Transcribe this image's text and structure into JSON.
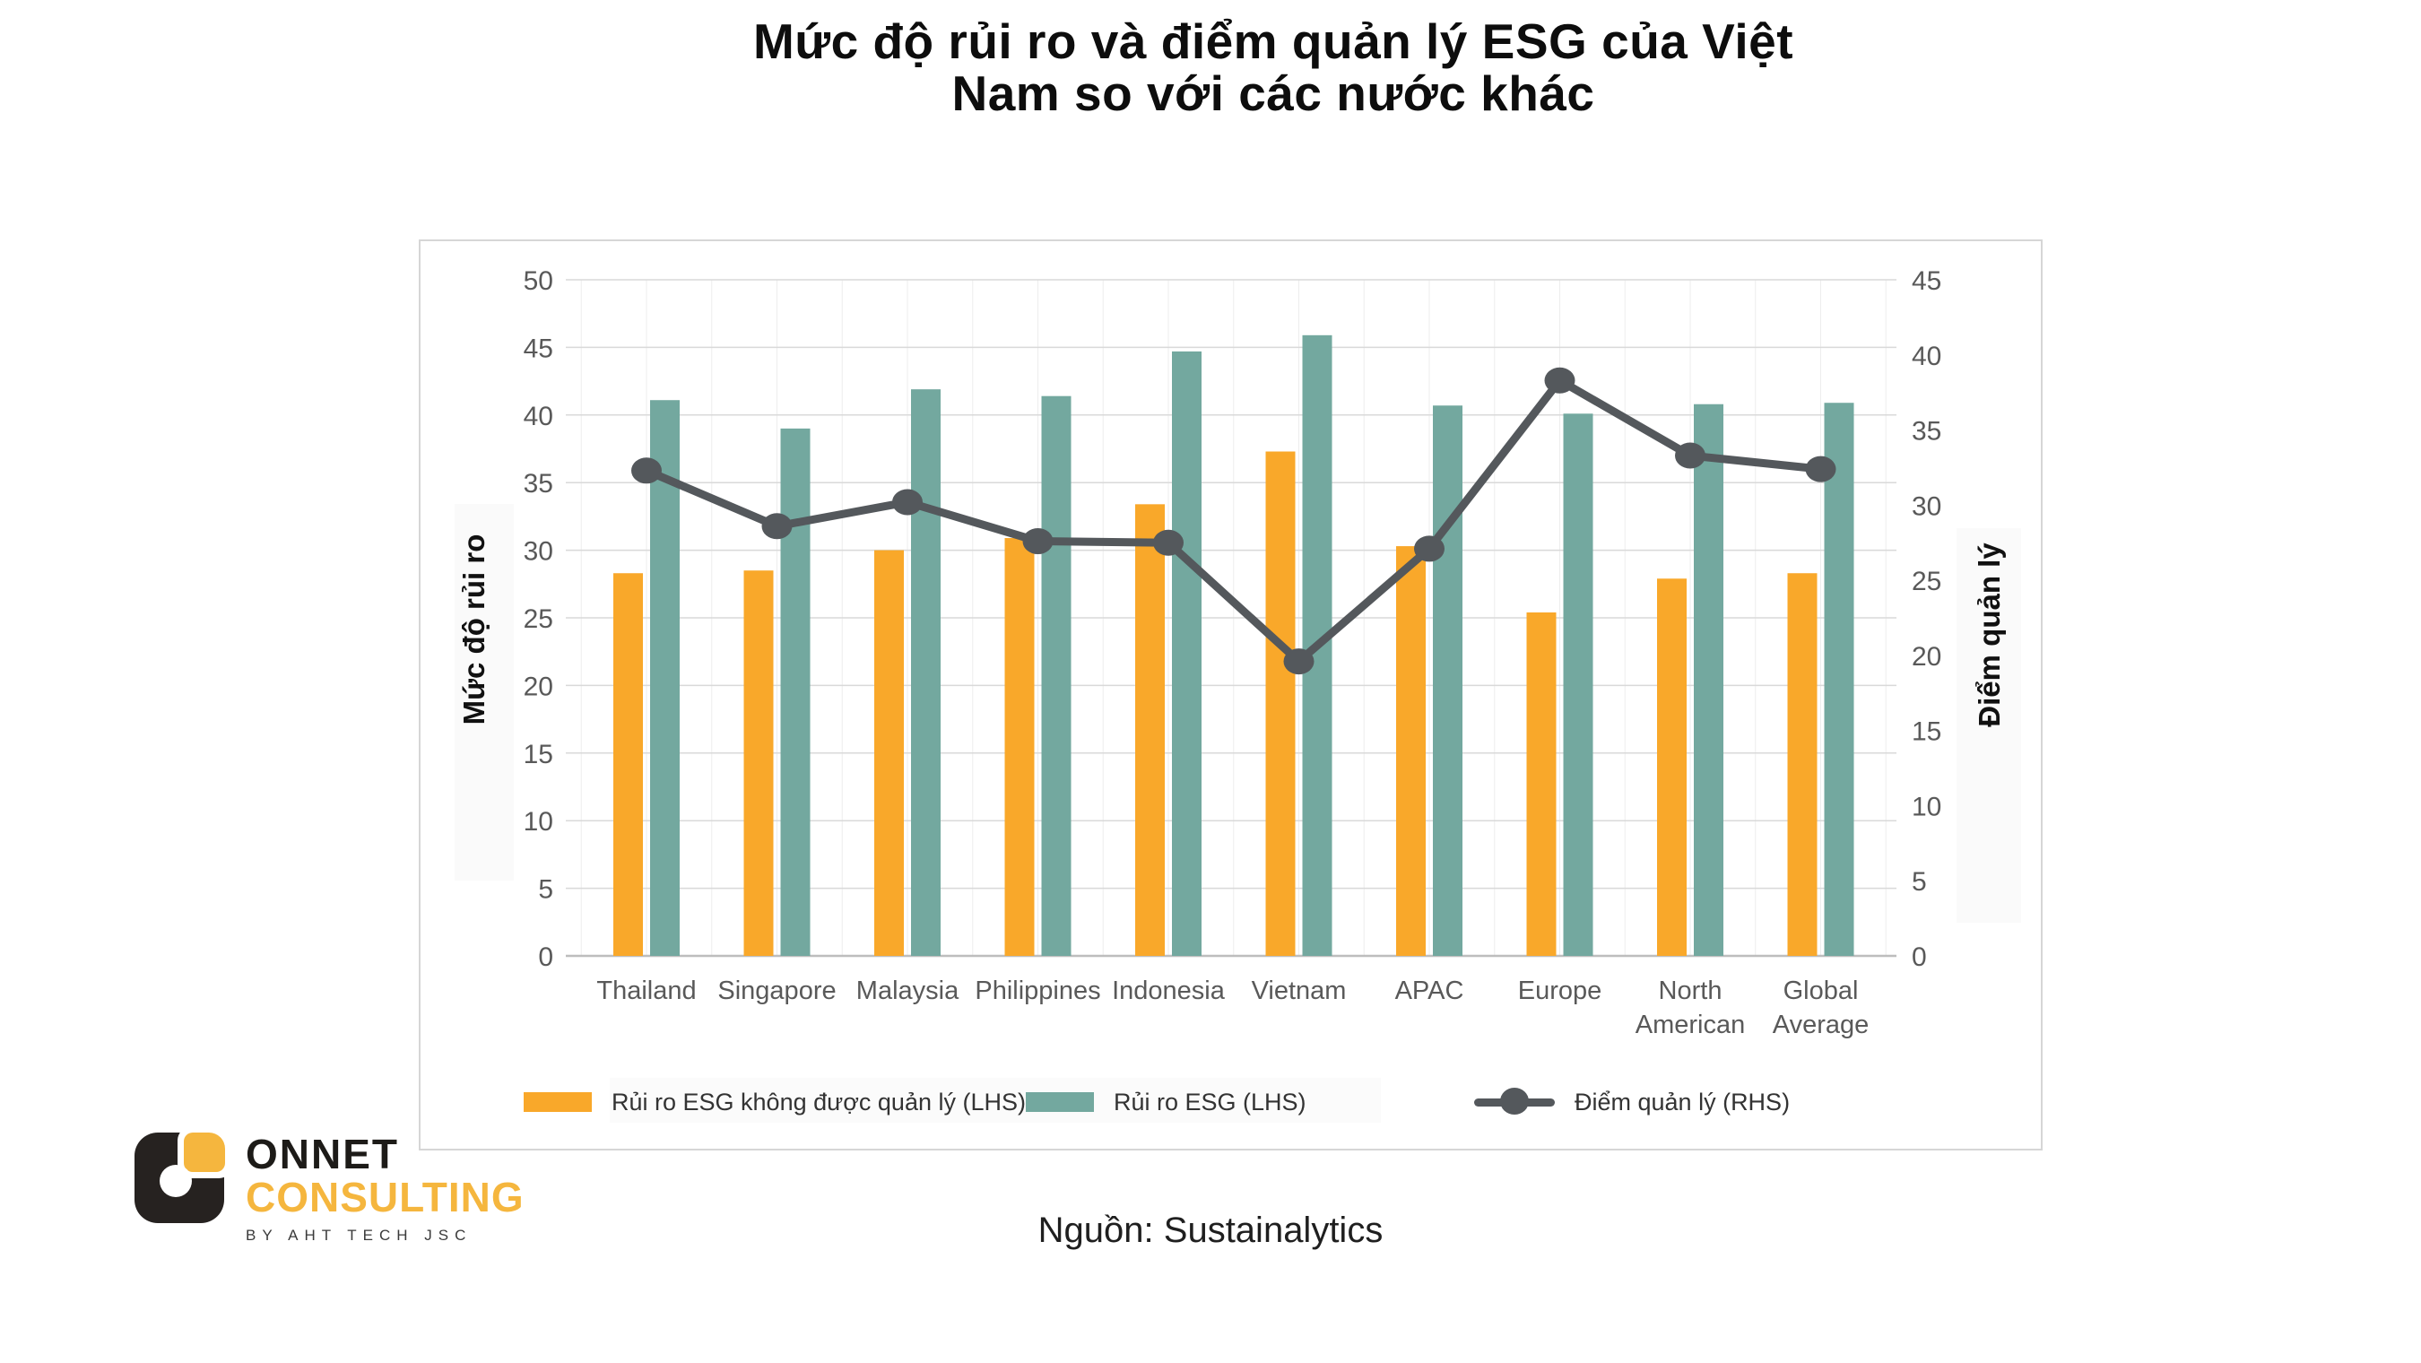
{
  "title": "Mức độ rủi ro và điểm quản lý ESG của Việt Nam so với các nước khác",
  "title_lines": [
    "Mức độ rủi ro và điểm quản lý ESG của Việt",
    "Nam so với các nước khác"
  ],
  "source": "Nguồn: Sustainalytics",
  "logo": {
    "brand": "ONNET",
    "sub": "CONSULTING",
    "tagline": "BY AHT TECH JSC",
    "accent_color": "#f5b63e",
    "dark_color": "#262220"
  },
  "chart_data": {
    "type": "bar",
    "title": "Mức độ rủi ro và điểm quản lý ESG của Việt Nam so với các nước khác",
    "categories": [
      "Thailand",
      "Singapore",
      "Malaysia",
      "Philippines",
      "Indonesia",
      "Vietnam",
      "APAC",
      "Europe",
      "North American",
      "Global Average"
    ],
    "series": [
      {
        "name": "Rủi ro ESG không được quản lý (LHS)",
        "type": "bar",
        "axis": "left",
        "color": "#F9A82A",
        "values": [
          28.3,
          28.5,
          30.0,
          30.9,
          33.4,
          37.3,
          30.3,
          25.4,
          27.9,
          28.3
        ]
      },
      {
        "name": "Rủi ro ESG (LHS)",
        "type": "bar",
        "axis": "left",
        "color": "#73A89F",
        "values": [
          41.1,
          39.0,
          41.9,
          41.4,
          44.7,
          45.9,
          40.7,
          40.1,
          40.8,
          40.9
        ]
      },
      {
        "name": "Điểm quản lý (RHS)",
        "type": "line",
        "axis": "right",
        "color": "#54585C",
        "values": [
          32.3,
          28.6,
          30.2,
          27.6,
          27.5,
          19.6,
          27.1,
          38.3,
          33.3,
          32.4
        ]
      }
    ],
    "left_axis": {
      "title": "Mức độ rủi ro",
      "min": 0,
      "max": 50,
      "step": 5
    },
    "right_axis": {
      "title": "Điểm quản lý",
      "min": 0,
      "max": 45,
      "step": 5
    },
    "grid": true,
    "legend_position": "bottom",
    "colors": {
      "gridline": "#D9D9D9",
      "minor_vertical_gridline": "#EDEDED",
      "axis_line": "#BDBDBD",
      "tick_label": "#595959"
    }
  }
}
